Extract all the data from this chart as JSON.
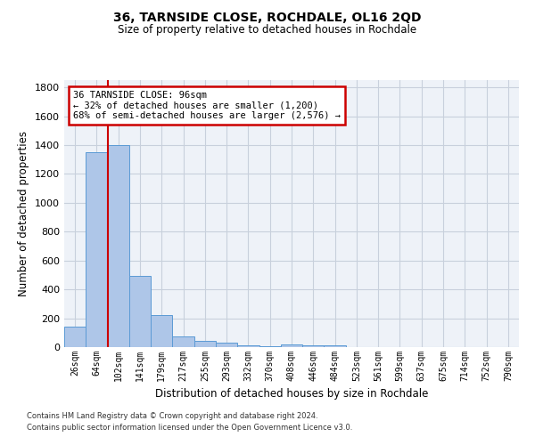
{
  "title": "36, TARNSIDE CLOSE, ROCHDALE, OL16 2QD",
  "subtitle": "Size of property relative to detached houses in Rochdale",
  "xlabel": "Distribution of detached houses by size in Rochdale",
  "ylabel": "Number of detached properties",
  "categories": [
    "26sqm",
    "64sqm",
    "102sqm",
    "141sqm",
    "179sqm",
    "217sqm",
    "255sqm",
    "293sqm",
    "332sqm",
    "370sqm",
    "408sqm",
    "446sqm",
    "484sqm",
    "523sqm",
    "561sqm",
    "599sqm",
    "637sqm",
    "675sqm",
    "714sqm",
    "752sqm",
    "790sqm"
  ],
  "values": [
    140,
    1350,
    1400,
    495,
    225,
    75,
    45,
    28,
    15,
    8,
    20,
    15,
    15,
    0,
    0,
    0,
    0,
    0,
    0,
    0,
    0
  ],
  "bar_color": "#aec6e8",
  "bar_edge_color": "#5b9bd5",
  "red_line_index": 2,
  "annotation_title": "36 TARNSIDE CLOSE: 96sqm",
  "annotation_line1": "← 32% of detached houses are smaller (1,200)",
  "annotation_line2": "68% of semi-detached houses are larger (2,576) →",
  "annotation_box_color": "#ffffff",
  "annotation_box_edgecolor": "#cc0000",
  "red_line_color": "#cc0000",
  "ylim": [
    0,
    1850
  ],
  "yticks": [
    0,
    200,
    400,
    600,
    800,
    1000,
    1200,
    1400,
    1600,
    1800
  ],
  "footer1": "Contains HM Land Registry data © Crown copyright and database right 2024.",
  "footer2": "Contains public sector information licensed under the Open Government Licence v3.0.",
  "bg_color": "#eef2f8",
  "grid_color": "#c8d0dc"
}
